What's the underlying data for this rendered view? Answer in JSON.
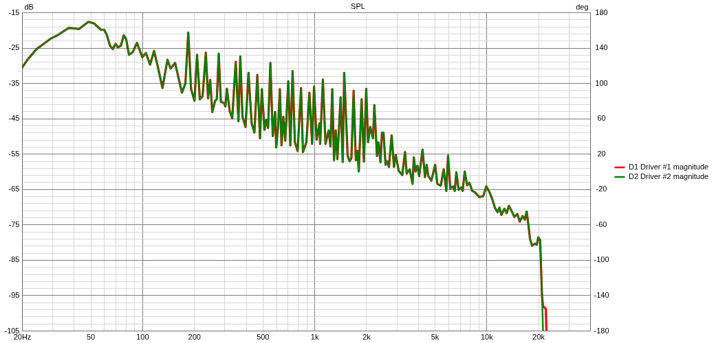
{
  "chart_data": {
    "type": "line",
    "title": "SPL",
    "ylabel": "dB",
    "y2label": "deg",
    "xlim": [
      20,
      40000
    ],
    "ylim": [
      -105,
      -15
    ],
    "y2lim": [
      -180,
      180
    ],
    "log": "x",
    "grid": true,
    "legend": "right",
    "xticks": [
      {
        "value": 20,
        "label": "20Hz"
      },
      {
        "value": 30,
        "label": null
      },
      {
        "value": 40,
        "label": null
      },
      50,
      {
        "value": 60,
        "label": null
      },
      {
        "value": 70,
        "label": null
      },
      {
        "value": 80,
        "label": null
      },
      {
        "value": 90,
        "label": null
      },
      100,
      200,
      {
        "value": 300,
        "label": null
      },
      {
        "value": 400,
        "label": null
      },
      500,
      {
        "value": 600,
        "label": null
      },
      {
        "value": 700,
        "label": null
      },
      {
        "value": 800,
        "label": null
      },
      {
        "value": 900,
        "label": null
      },
      {
        "value": 1000,
        "label": "1k"
      },
      {
        "value": 2000,
        "label": "2k"
      },
      {
        "value": 3000,
        "label": null
      },
      {
        "value": 4000,
        "label": null
      },
      {
        "value": 5000,
        "label": "5k"
      },
      {
        "value": 6000,
        "label": null
      },
      {
        "value": 7000,
        "label": null
      },
      {
        "value": 8000,
        "label": null
      },
      {
        "value": 9000,
        "label": null
      },
      {
        "value": 10000,
        "label": "10k"
      },
      {
        "value": 20000,
        "label": "20k"
      },
      {
        "value": 30000,
        "label": null
      }
    ],
    "yticks": [
      -15,
      {
        "value": -17,
        "label": null
      },
      {
        "value": -19,
        "label": null
      },
      {
        "value": -21,
        "label": null
      },
      {
        "value": -23,
        "label": null
      },
      -25,
      {
        "value": -27,
        "label": null
      },
      {
        "value": -29,
        "label": null
      },
      {
        "value": -31,
        "label": null
      },
      {
        "value": -33,
        "label": null
      },
      -35,
      {
        "value": -37,
        "label": null
      },
      {
        "value": -39,
        "label": null
      },
      {
        "value": -41,
        "label": null
      },
      {
        "value": -43,
        "label": null
      },
      -45,
      {
        "value": -47,
        "label": null
      },
      {
        "value": -49,
        "label": null
      },
      {
        "value": -51,
        "label": null
      },
      {
        "value": -53,
        "label": null
      },
      -55,
      {
        "value": -57,
        "label": null
      },
      {
        "value": -59,
        "label": null
      },
      {
        "value": -61,
        "label": null
      },
      {
        "value": -63,
        "label": null
      },
      -65,
      {
        "value": -67,
        "label": null
      },
      {
        "value": -69,
        "label": null
      },
      {
        "value": -71,
        "label": null
      },
      {
        "value": -73,
        "label": null
      },
      -75,
      {
        "value": -77,
        "label": null
      },
      {
        "value": -79,
        "label": null
      },
      {
        "value": -81,
        "label": null
      },
      {
        "value": -83,
        "label": null
      },
      -85,
      {
        "value": -87,
        "label": null
      },
      {
        "value": -89,
        "label": null
      },
      {
        "value": -91,
        "label": null
      },
      {
        "value": -93,
        "label": null
      },
      -95,
      {
        "value": -97,
        "label": null
      },
      {
        "value": -99,
        "label": null
      },
      {
        "value": -101,
        "label": null
      },
      {
        "value": -103,
        "label": null
      },
      -105
    ],
    "y2ticks": [
      180,
      140,
      100,
      60,
      20,
      -20,
      -60,
      -100,
      -140,
      -180
    ],
    "series": [
      {
        "name": "D1 Driver #1 magnitude",
        "color": "#ff0000",
        "x": [
          20,
          21.5,
          24.3,
          29.2,
          32.1,
          37.4,
          42.9,
          48.5,
          52.4,
          57.4,
          60,
          62,
          64.9,
          67.3,
          70,
          72.2,
          75.1,
          78,
          80.5,
          83.7,
          88.1,
          93.1,
          100,
          105,
          111,
          117,
          123,
          131,
          140,
          146,
          155,
          170,
          178,
          185,
          192,
          201,
          208,
          216,
          224,
          234,
          241,
          248,
          255,
          265,
          271,
          278,
          286,
          298,
          304,
          310,
          322,
          333,
          349,
          362,
          371,
          382,
          398,
          414,
          432,
          448,
          466,
          483,
          495,
          513,
          525,
          538,
          555,
          573,
          591,
          600,
          616,
          630,
          644,
          660,
          677,
          705,
          725,
          747,
          770,
          799,
          836,
          858,
          899,
          935,
          970,
          995,
          1030,
          1070,
          1080,
          1120,
          1160,
          1210,
          1240,
          1270,
          1300,
          1330,
          1360,
          1420,
          1460,
          1490,
          1560,
          1600,
          1640,
          1690,
          1740,
          1780,
          1810,
          1880,
          1940,
          2000,
          2050,
          2110,
          2190,
          2230,
          2310,
          2360,
          2420,
          2470,
          2520,
          2590,
          2650,
          2710,
          2810,
          2900,
          2970,
          3090,
          3240,
          3360,
          3440,
          3580,
          3720,
          3780,
          3870,
          3970,
          4060,
          4250,
          4390,
          4490,
          4590,
          4780,
          5030,
          5180,
          5420,
          5640,
          5840,
          5980,
          6160,
          6390,
          6540,
          6680,
          6890,
          7140,
          7270,
          7470,
          7720,
          7960,
          8260,
          8520,
          8730,
          9060,
          9560,
          9980,
          10400,
          10800,
          11200,
          11600,
          11900,
          12200,
          12700,
          13100,
          13500,
          14100,
          14500,
          15100,
          15600,
          16200,
          16700,
          17100,
          17500,
          17900,
          18400,
          19100,
          19600,
          20000,
          20500,
          21000,
          21300,
          22100,
          22300
        ],
        "values": [
          -30.7,
          -28.4,
          -25.4,
          -22.5,
          -21.5,
          -19.4,
          -19.7,
          -17.7,
          -18.1,
          -19.9,
          -19.9,
          -21.2,
          -24.4,
          -25.4,
          -23.9,
          -24.9,
          -24.4,
          -21.5,
          -22.5,
          -27,
          -26.2,
          -23.6,
          -27.7,
          -26.5,
          -29.8,
          -25.9,
          -30.3,
          -36.4,
          -28.4,
          -30.9,
          -29.3,
          -37.7,
          -35.1,
          -20.7,
          -36.7,
          -40,
          -27,
          -39.6,
          -38.7,
          -26.4,
          -39.3,
          -34.1,
          -43.2,
          -40,
          -39.6,
          -26.7,
          -40.3,
          -40.6,
          -41.6,
          -36.6,
          -42.9,
          -45,
          -29,
          -45.8,
          -27.5,
          -44.5,
          -47.4,
          -32.1,
          -46.4,
          -49,
          -32.7,
          -50.6,
          -36.7,
          -48.2,
          -45.4,
          -47.7,
          -29.3,
          -50,
          -43.2,
          -53.2,
          -47,
          -36.7,
          -52.6,
          -44.5,
          -51.3,
          -34.5,
          -52.6,
          -31.6,
          -51.7,
          -54.2,
          -36.4,
          -54.5,
          -51.7,
          -37.7,
          -52.2,
          -36,
          -51,
          -46.4,
          -52.2,
          -34,
          -52.2,
          -48.4,
          -52.9,
          -36.7,
          -56.8,
          -48.4,
          -56.5,
          -39,
          -57.3,
          -32.1,
          -55.5,
          -57.1,
          -56.3,
          -37.2,
          -56.8,
          -54.2,
          -60,
          -39.6,
          -57.2,
          -36.6,
          -51.7,
          -47.4,
          -50.6,
          -41.2,
          -55.6,
          -51.8,
          -57.4,
          -49,
          -49,
          -58.1,
          -57.1,
          -58.7,
          -49.8,
          -58.7,
          -55.3,
          -59.8,
          -61,
          -54.5,
          -60.6,
          -59.4,
          -63.5,
          -56,
          -60,
          -58.4,
          -61.3,
          -53.8,
          -61.6,
          -58.1,
          -61.3,
          -62.6,
          -58.1,
          -63.5,
          -64,
          -59.4,
          -65.5,
          -55.5,
          -64.8,
          -64.2,
          -65.5,
          -60.2,
          -65.2,
          -64.5,
          -65.5,
          -60,
          -63.9,
          -63.2,
          -65.5,
          -65.8,
          -66.3,
          -67.2,
          -67,
          -64.2,
          -65.8,
          -67.8,
          -70.3,
          -71.5,
          -70.2,
          -72.3,
          -70.5,
          -71.8,
          -69.7,
          -71.5,
          -72.8,
          -72,
          -74.2,
          -72.6,
          -73.6,
          -71.3,
          -74.9,
          -79.1,
          -81,
          -80.4,
          -80.7,
          -78.6,
          -79.4,
          -94.9,
          -98.1,
          -98.8,
          -105
        ]
      },
      {
        "name": "D2 Driver #2 magnitude",
        "color": "#008000",
        "x": [
          20,
          21.5,
          24.3,
          29.2,
          32.1,
          37.4,
          42.9,
          48.5,
          52.4,
          57.4,
          60,
          62,
          64.9,
          67.3,
          70,
          72.2,
          75.1,
          78,
          80.5,
          83.7,
          88.1,
          93.1,
          100,
          105,
          111,
          117,
          123,
          131,
          140,
          146,
          155,
          170,
          178,
          185,
          192,
          201,
          208,
          216,
          224,
          234,
          241,
          248,
          255,
          265,
          271,
          278,
          286,
          298,
          304,
          310,
          322,
          333,
          349,
          362,
          371,
          382,
          398,
          414,
          432,
          448,
          466,
          483,
          495,
          513,
          525,
          538,
          555,
          573,
          591,
          600,
          616,
          630,
          644,
          660,
          677,
          705,
          725,
          747,
          770,
          799,
          836,
          858,
          899,
          935,
          970,
          995,
          1030,
          1070,
          1080,
          1120,
          1160,
          1210,
          1240,
          1270,
          1300,
          1330,
          1360,
          1420,
          1460,
          1490,
          1560,
          1600,
          1640,
          1690,
          1740,
          1780,
          1810,
          1880,
          1940,
          2000,
          2050,
          2110,
          2190,
          2230,
          2310,
          2360,
          2420,
          2470,
          2520,
          2590,
          2650,
          2710,
          2810,
          2900,
          2970,
          3090,
          3240,
          3360,
          3440,
          3580,
          3720,
          3780,
          3870,
          3970,
          4060,
          4250,
          4390,
          4490,
          4590,
          4780,
          5030,
          5180,
          5420,
          5640,
          5840,
          5980,
          6160,
          6390,
          6540,
          6680,
          6890,
          7140,
          7270,
          7470,
          7720,
          7960,
          8260,
          8520,
          8730,
          9060,
          9560,
          9980,
          10400,
          10800,
          11200,
          11600,
          11900,
          12200,
          12700,
          13100,
          13500,
          14100,
          14500,
          15100,
          15600,
          16200,
          16700,
          17100,
          17500,
          17900,
          18400,
          19100,
          19600,
          20000,
          20500,
          21000,
          21300
        ],
        "values": [
          -30.7,
          -28.4,
          -25.4,
          -22.5,
          -21.5,
          -19.4,
          -19.7,
          -17.7,
          -18.1,
          -19.9,
          -19.9,
          -21.2,
          -24.4,
          -25.4,
          -23.9,
          -24.9,
          -24.4,
          -21.5,
          -22.5,
          -27,
          -26.2,
          -23.6,
          -27.7,
          -26.5,
          -29.8,
          -25.9,
          -30.3,
          -36.4,
          -28.4,
          -30.9,
          -29.3,
          -37.7,
          -35.1,
          -20.7,
          -36.7,
          -40,
          -27,
          -39.6,
          -38.7,
          -26.4,
          -39.3,
          -34.1,
          -43.2,
          -40,
          -39.6,
          -26.7,
          -40.3,
          -40.6,
          -41.6,
          -36.6,
          -42.9,
          -45,
          -29,
          -45.8,
          -27.5,
          -44.5,
          -47.4,
          -32.1,
          -46.4,
          -49,
          -32.7,
          -50.6,
          -36.7,
          -48.2,
          -45.4,
          -47.7,
          -29.3,
          -50,
          -43.2,
          -53.2,
          -47,
          -36.7,
          -52.6,
          -44.5,
          -51.3,
          -34.5,
          -52.6,
          -31.6,
          -51.7,
          -54.2,
          -36.4,
          -54.5,
          -51.7,
          -37.7,
          -52.2,
          -36,
          -51,
          -46.4,
          -52.2,
          -34,
          -52.2,
          -48.4,
          -52.9,
          -36.7,
          -56.8,
          -48.4,
          -56.5,
          -39,
          -57.3,
          -32.1,
          -55.5,
          -57.1,
          -56.3,
          -37.2,
          -56.8,
          -54.2,
          -60,
          -39.6,
          -57.2,
          -36.6,
          -51.7,
          -47.4,
          -50.6,
          -41.2,
          -55.6,
          -51.8,
          -57.4,
          -49,
          -49,
          -58.1,
          -57.1,
          -58.7,
          -49.8,
          -58.7,
          -55.3,
          -59.8,
          -61,
          -54.5,
          -60.6,
          -59.4,
          -63.5,
          -56,
          -60,
          -58.4,
          -61.3,
          -53.8,
          -61.6,
          -58.1,
          -61.3,
          -62.6,
          -58.1,
          -63.5,
          -64,
          -59.4,
          -65.5,
          -55.5,
          -64.8,
          -64.2,
          -65.5,
          -60.2,
          -65.2,
          -64.5,
          -65.5,
          -60,
          -63.9,
          -63.2,
          -65.5,
          -65.8,
          -66.3,
          -67.2,
          -67,
          -64.2,
          -65.8,
          -67.8,
          -70.3,
          -71.5,
          -70.2,
          -72.3,
          -70.5,
          -71.8,
          -69.7,
          -71.5,
          -72.8,
          -72,
          -74.2,
          -72.6,
          -73.6,
          -71.3,
          -74.9,
          -79.1,
          -81,
          -80.4,
          -80.7,
          -78.6,
          -79.4,
          -94.9,
          -105
        ]
      }
    ]
  }
}
